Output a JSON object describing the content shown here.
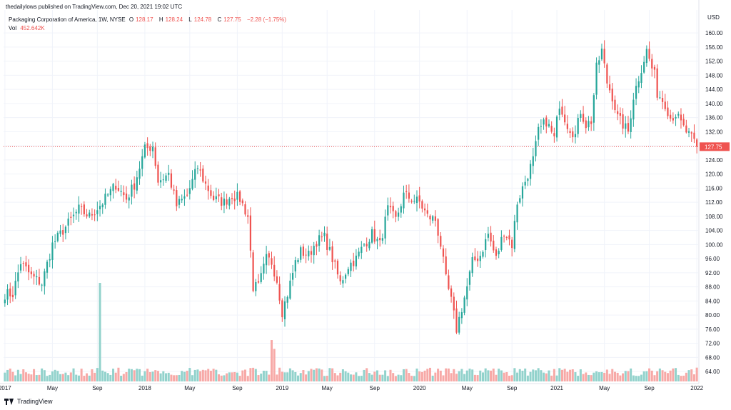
{
  "publisher_line": "thedailylows published on TradingView.com, Dec 20, 2021 19:02 UTC",
  "legend": {
    "symbol": "Packaging Corporation of America, 1W, NYSE",
    "o_label": "O",
    "o": "128.17",
    "h_label": "H",
    "h": "128.24",
    "l_label": "L",
    "l": "124.78",
    "c_label": "C",
    "c": "127.75",
    "change": "−2.28 (−1.75%)",
    "vol_label": "Vol",
    "vol": "452.642K"
  },
  "footer": {
    "brand": "TradingView"
  },
  "colors": {
    "up": "#26a69a",
    "down": "#ef5350",
    "up_vol": "#92d2cc",
    "down_vol": "#f7a9a7",
    "grid": "#f0f3fa",
    "axis_text": "#131722",
    "price_line": "#ef5350"
  },
  "chart_data": {
    "type": "candlestick",
    "title": "Packaging Corporation of America, 1W, NYSE",
    "currency_label": "USD",
    "last_price": 127.75,
    "last_price_label": "127.75",
    "ylim": [
      61.2,
      166.5
    ],
    "y_ticks": [
      "64.00",
      "68.00",
      "72.00",
      "76.00",
      "80.00",
      "84.00",
      "88.00",
      "92.00",
      "96.00",
      "100.00",
      "104.00",
      "108.00",
      "112.00",
      "116.00",
      "120.00",
      "124.00",
      "128.00",
      "132.00",
      "136.00",
      "140.00",
      "144.00",
      "148.00",
      "152.00",
      "156.00",
      "160.00"
    ],
    "x_ticks": [
      {
        "label": "2017",
        "week": 0
      },
      {
        "label": "May",
        "week": 18
      },
      {
        "label": "Sep",
        "week": 35
      },
      {
        "label": "2018",
        "week": 53
      },
      {
        "label": "May",
        "week": 70
      },
      {
        "label": "Sep",
        "week": 88
      },
      {
        "label": "2019",
        "week": 105
      },
      {
        "label": "May",
        "week": 122
      },
      {
        "label": "Sep",
        "week": 140
      },
      {
        "label": "2020",
        "week": 157
      },
      {
        "label": "May",
        "week": 175
      },
      {
        "label": "Sep",
        "week": 192
      },
      {
        "label": "2021",
        "week": 209
      },
      {
        "label": "May",
        "week": 227
      },
      {
        "label": "Sep",
        "week": 244
      },
      {
        "label": "2022",
        "week": 262
      }
    ],
    "anchors": [
      [
        0,
        86
      ],
      [
        3,
        86
      ],
      [
        6,
        95
      ],
      [
        10,
        91
      ],
      [
        14,
        89
      ],
      [
        18,
        100
      ],
      [
        23,
        105
      ],
      [
        28,
        110
      ],
      [
        32,
        108
      ],
      [
        37,
        112
      ],
      [
        42,
        117
      ],
      [
        46,
        113
      ],
      [
        49,
        117
      ],
      [
        53,
        127
      ],
      [
        56,
        128
      ],
      [
        58,
        118
      ],
      [
        62,
        120
      ],
      [
        65,
        111
      ],
      [
        69,
        114
      ],
      [
        73,
        122
      ],
      [
        76,
        117
      ],
      [
        79,
        113
      ],
      [
        83,
        112
      ],
      [
        86,
        114
      ],
      [
        89,
        113
      ],
      [
        92,
        108
      ],
      [
        94,
        88
      ],
      [
        96,
        88
      ],
      [
        99,
        96
      ],
      [
        101,
        95
      ],
      [
        103,
        90
      ],
      [
        105,
        81
      ],
      [
        107,
        86
      ],
      [
        110,
        95
      ],
      [
        112,
        98
      ],
      [
        115,
        97
      ],
      [
        118,
        101
      ],
      [
        121,
        102
      ],
      [
        124,
        96
      ],
      [
        127,
        89
      ],
      [
        130,
        94
      ],
      [
        133,
        96
      ],
      [
        136,
        100
      ],
      [
        139,
        103
      ],
      [
        142,
        100
      ],
      [
        145,
        110
      ],
      [
        148,
        107
      ],
      [
        151,
        114
      ],
      [
        154,
        113
      ],
      [
        157,
        112
      ],
      [
        160,
        108
      ],
      [
        163,
        107
      ],
      [
        165,
        100
      ],
      [
        167,
        90
      ],
      [
        169,
        84
      ],
      [
        171,
        76
      ],
      [
        173,
        82
      ],
      [
        175,
        88
      ],
      [
        177,
        95
      ],
      [
        180,
        97
      ],
      [
        183,
        103
      ],
      [
        186,
        96
      ],
      [
        189,
        104
      ],
      [
        192,
        100
      ],
      [
        194,
        112
      ],
      [
        197,
        118
      ],
      [
        200,
        124
      ],
      [
        202,
        132
      ],
      [
        205,
        135
      ],
      [
        208,
        130
      ],
      [
        210,
        140
      ],
      [
        213,
        134
      ],
      [
        216,
        131
      ],
      [
        218,
        138
      ],
      [
        220,
        134
      ],
      [
        222,
        135
      ],
      [
        224,
        150
      ],
      [
        226,
        155
      ],
      [
        228,
        146
      ],
      [
        230,
        142
      ],
      [
        232,
        136
      ],
      [
        234,
        134
      ],
      [
        236,
        132
      ],
      [
        238,
        142
      ],
      [
        241,
        150
      ],
      [
        243,
        155
      ],
      [
        245,
        150
      ],
      [
        246,
        148
      ],
      [
        247,
        143
      ],
      [
        250,
        140
      ],
      [
        252,
        136
      ],
      [
        254,
        137
      ],
      [
        257,
        133
      ],
      [
        259,
        131
      ],
      [
        261,
        129
      ],
      [
        262,
        127.75
      ]
    ],
    "weeks": 263,
    "volume": {
      "label": "Vol",
      "spikes": [
        {
          "week": 36,
          "rel": 1.0
        },
        {
          "week": 101,
          "rel": 0.42
        },
        {
          "week": 102,
          "rel": 0.33
        }
      ]
    }
  }
}
